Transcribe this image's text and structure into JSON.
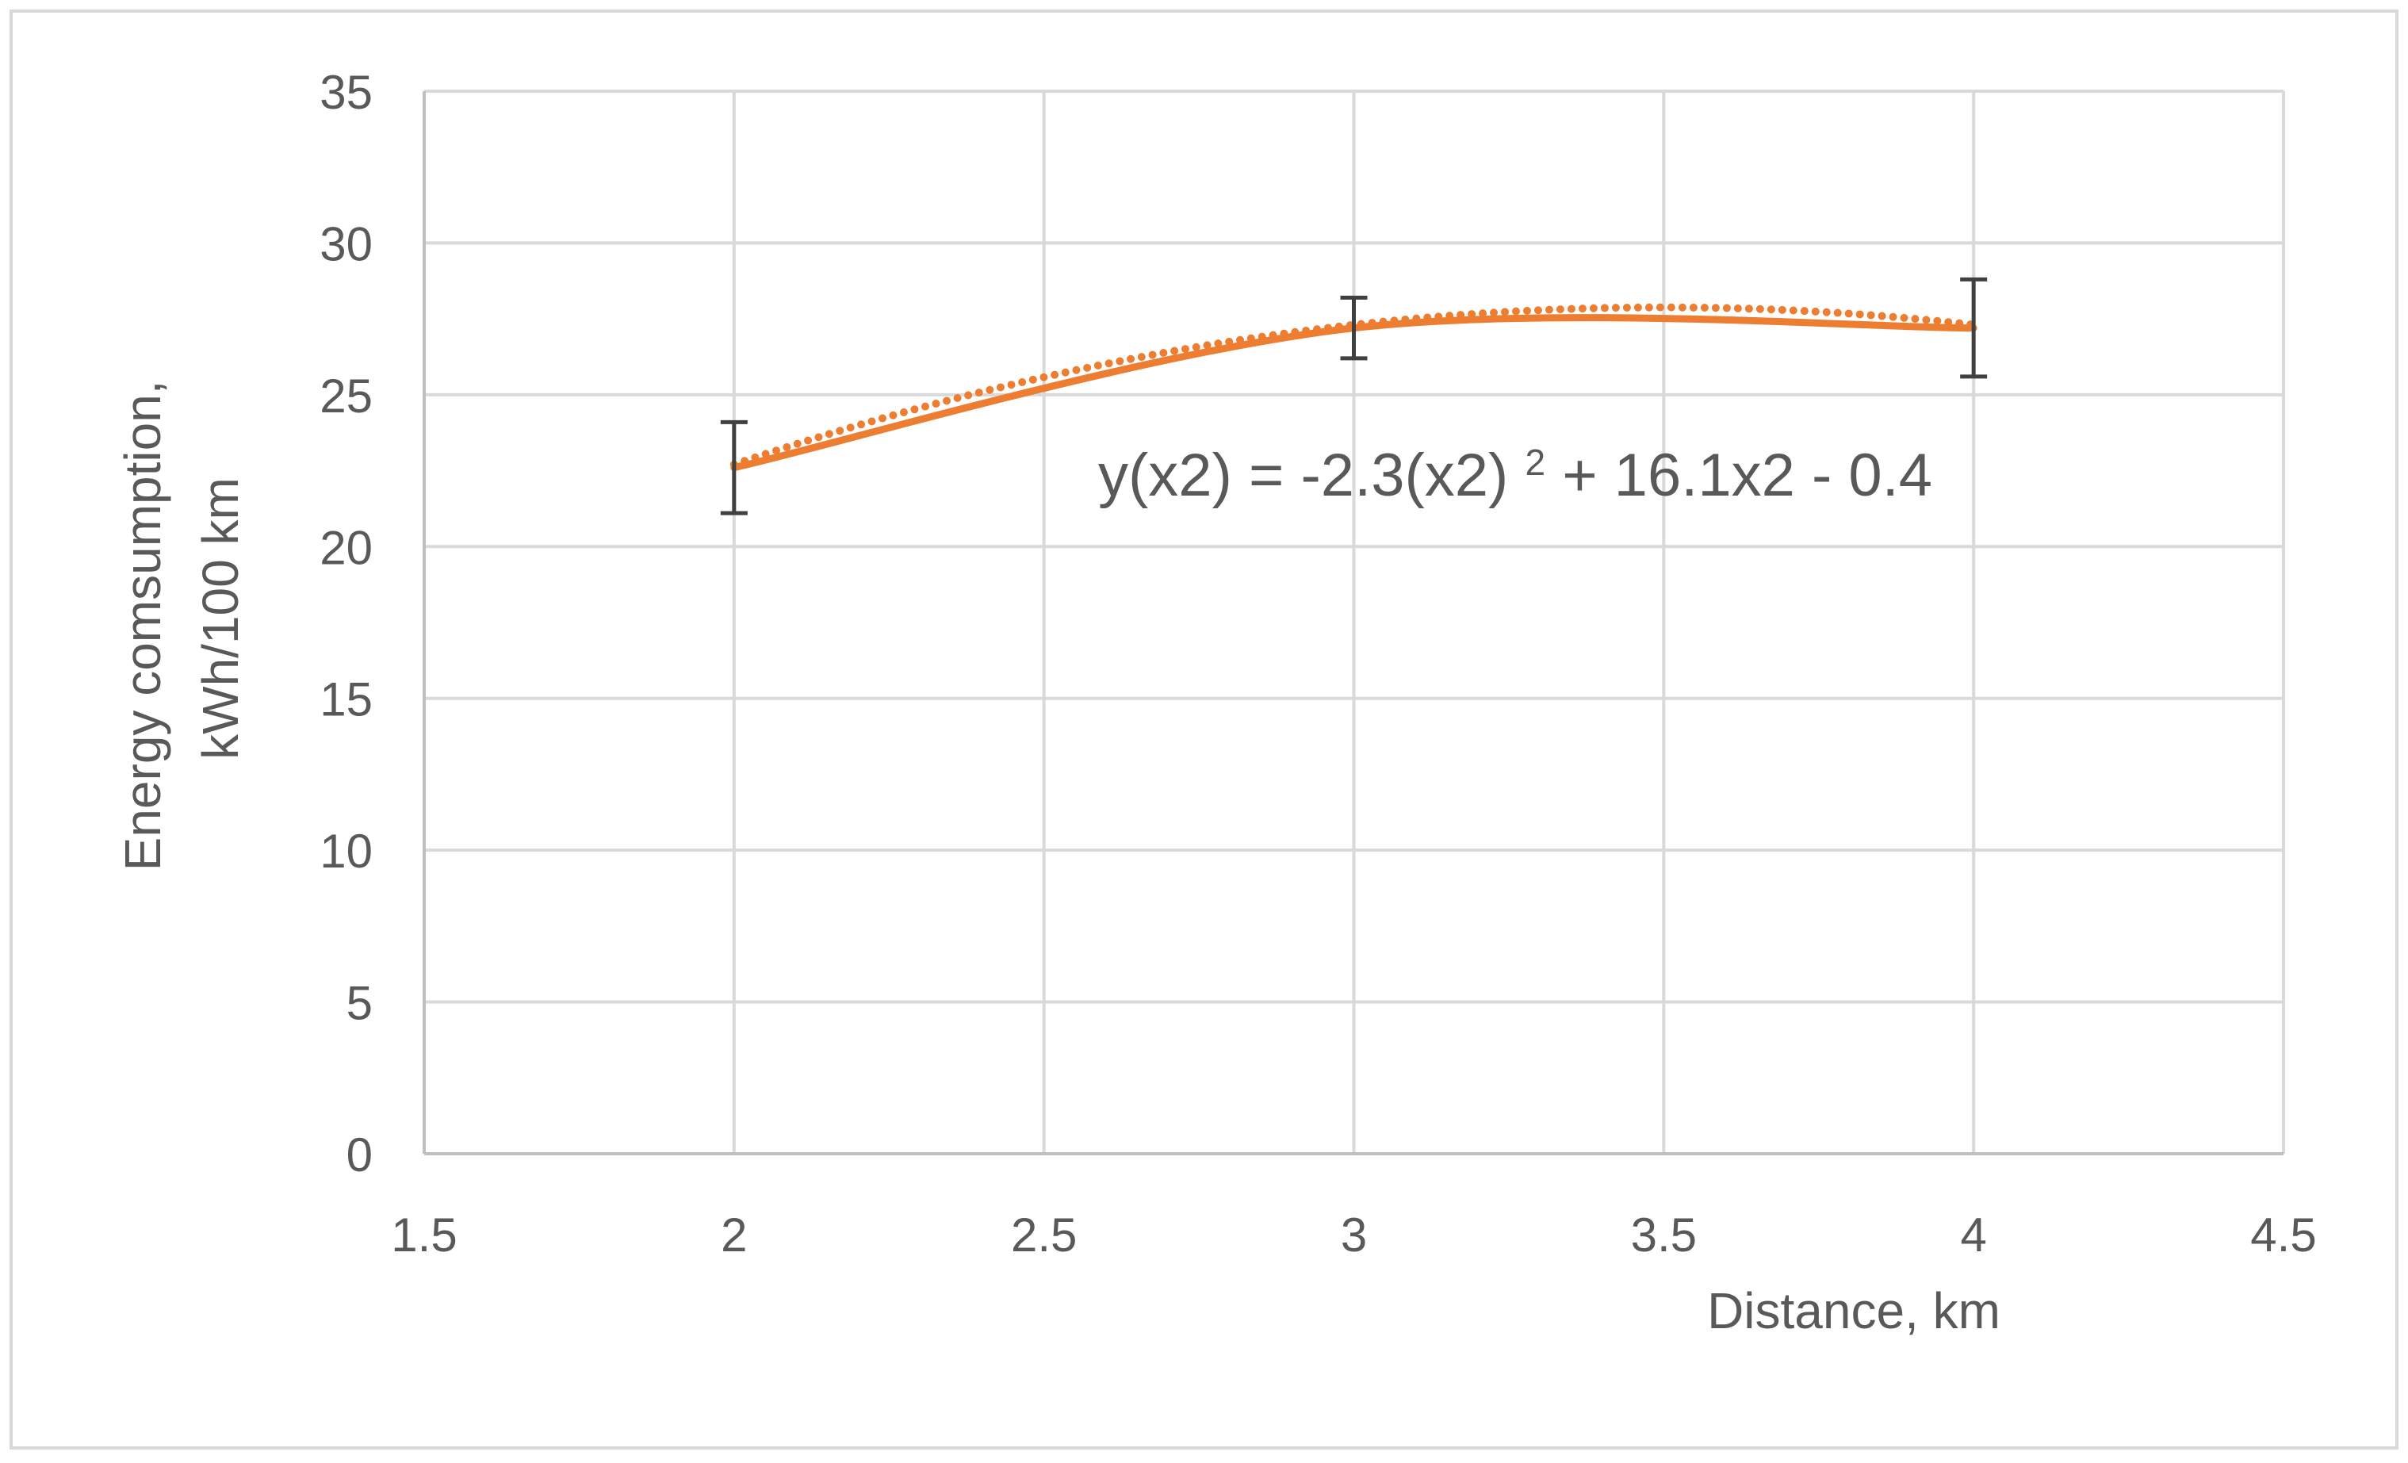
{
  "chart_data": {
    "type": "scatter",
    "title": "",
    "xlabel": "Distance, km",
    "ylabel_lines": [
      "Energy comsumption,",
      "kWh/100 km"
    ],
    "xlim": [
      1.5,
      4.5
    ],
    "ylim": [
      0,
      35
    ],
    "x_ticks": [
      1.5,
      2,
      2.5,
      3,
      3.5,
      4,
      4.5
    ],
    "x_tick_labels": [
      "1.5",
      "2",
      "2.5",
      "3",
      "3.5",
      "4",
      "4.5"
    ],
    "y_ticks": [
      0,
      5,
      10,
      15,
      20,
      25,
      30,
      35
    ],
    "y_tick_labels": [
      "0",
      "5",
      "10",
      "15",
      "20",
      "25",
      "30",
      "35"
    ],
    "grid": true,
    "legend": "none",
    "series": [
      {
        "x": [
          2,
          3,
          4
        ],
        "y": [
          22.6,
          27.2,
          27.2
        ],
        "error": [
          1.5,
          1.0,
          1.6
        ],
        "color": "#ED7D31",
        "style": "smooth-line"
      }
    ],
    "trendline": {
      "kind": "polynomial-2",
      "coefficients": [
        -2.3,
        16.1,
        -0.4
      ],
      "style": "dotted",
      "color": "#ED7D31"
    },
    "equation": {
      "main": "y(x2) = -2.3(x2)",
      "sup": "2",
      "rest": " + 16.1x2 - 0.4"
    }
  }
}
